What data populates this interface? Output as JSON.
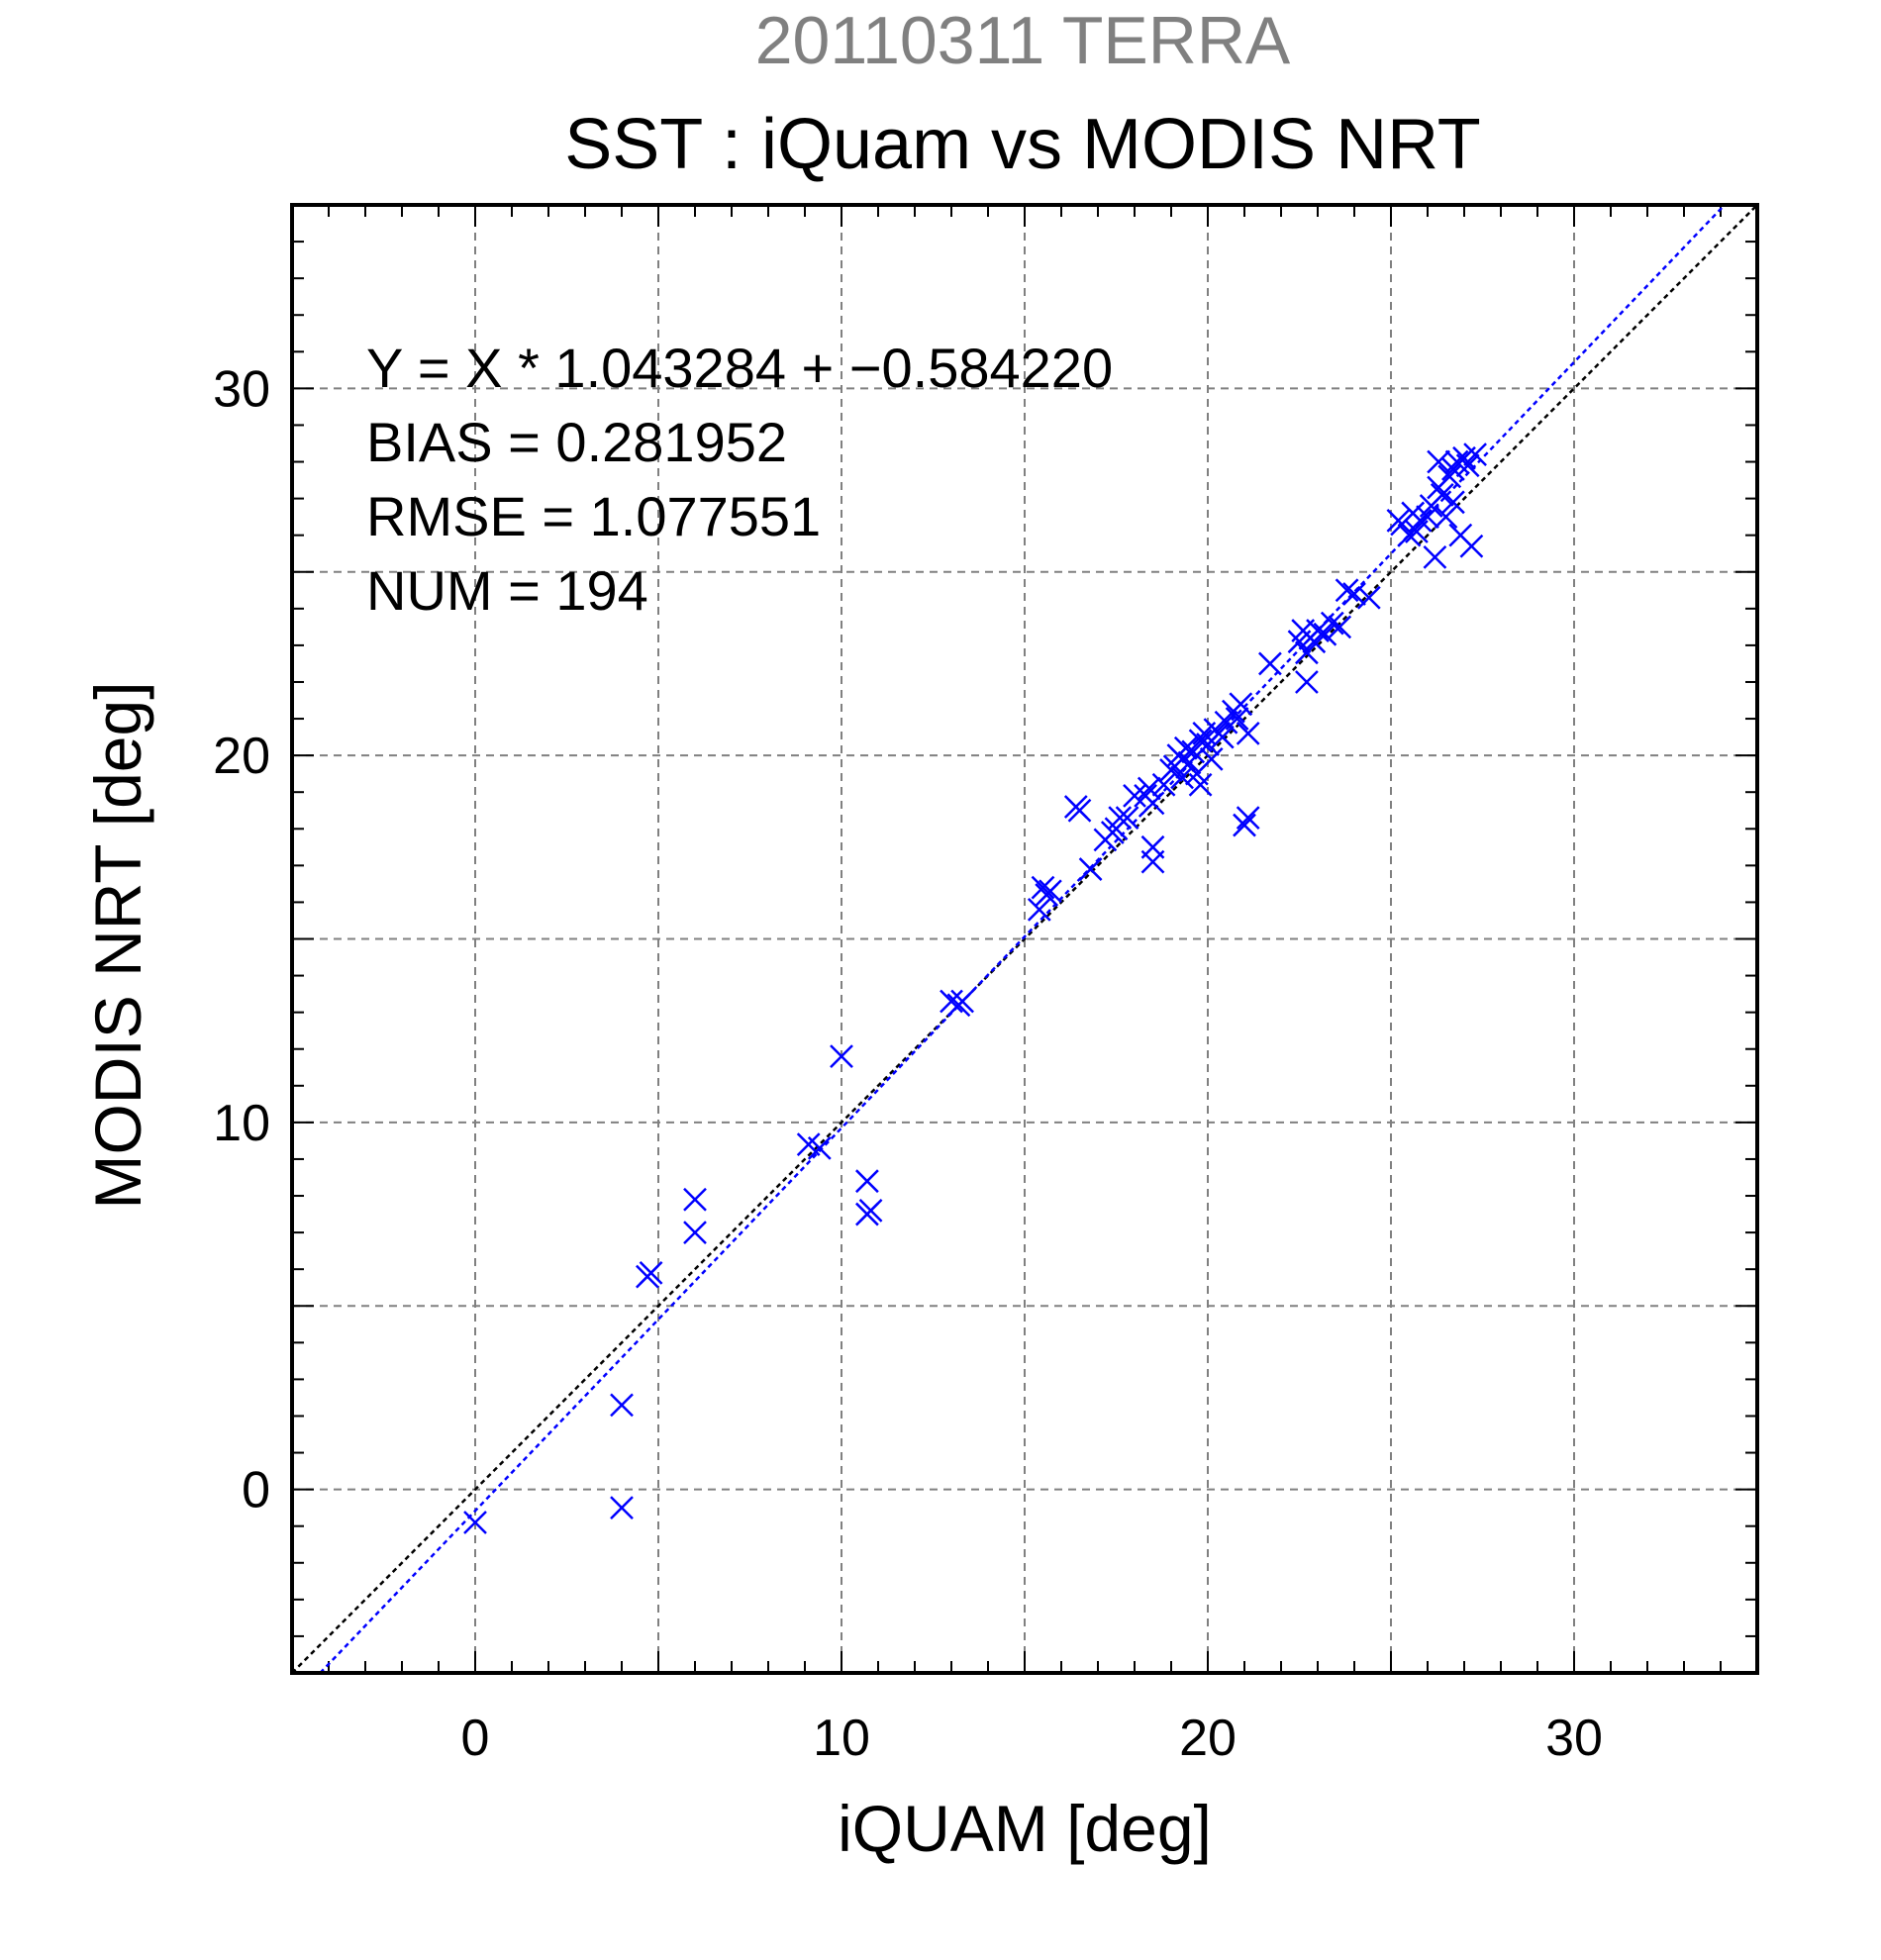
{
  "chart_data": {
    "type": "scatter",
    "title": "20110311 TERRA",
    "subtitle": "SST : iQuam vs MODIS NRT",
    "xlabel": "iQUAM [deg]",
    "ylabel": "MODIS NRT [deg]",
    "xlim": [
      -5,
      35
    ],
    "ylim": [
      -5,
      35
    ],
    "xticks": [
      "0",
      "10",
      "20",
      "30"
    ],
    "yticks": [
      "0",
      "10",
      "20",
      "30"
    ],
    "grid": true,
    "annotations": [
      "Y = X * 1.043284 + −0.584220",
      "BIAS = 0.281952",
      "RMSE = 1.077551",
      "NUM = 194"
    ],
    "lines": [
      {
        "style": "dotted",
        "color": "#000000",
        "slope": 1,
        "intercept": 0
      },
      {
        "style": "dotted",
        "color": "#0000ff",
        "slope": 1.043284,
        "intercept": -0.58422
      }
    ],
    "series": [
      {
        "color": "#0000ff",
        "marker": "x",
        "points": [
          [
            0.0,
            -0.9
          ],
          [
            4.0,
            -0.5
          ],
          [
            4.0,
            2.3
          ],
          [
            4.7,
            5.8
          ],
          [
            4.8,
            5.9
          ],
          [
            6.0,
            7.0
          ],
          [
            6.0,
            7.9
          ],
          [
            9.1,
            9.4
          ],
          [
            9.4,
            9.3
          ],
          [
            10.0,
            11.8
          ],
          [
            10.7,
            8.4
          ],
          [
            10.7,
            7.5
          ],
          [
            10.8,
            7.6
          ],
          [
            13.0,
            13.3
          ],
          [
            13.2,
            13.2
          ],
          [
            13.3,
            13.3
          ],
          [
            15.4,
            15.8
          ],
          [
            15.5,
            16.4
          ],
          [
            15.6,
            16.2
          ],
          [
            15.7,
            16.3
          ],
          [
            16.4,
            18.6
          ],
          [
            16.5,
            18.5
          ],
          [
            16.8,
            16.9
          ],
          [
            17.2,
            17.7
          ],
          [
            17.4,
            17.9
          ],
          [
            17.5,
            18.0
          ],
          [
            17.6,
            18.3
          ],
          [
            17.8,
            18.3
          ],
          [
            18.0,
            18.9
          ],
          [
            18.3,
            18.9
          ],
          [
            18.4,
            19.1
          ],
          [
            18.5,
            17.1
          ],
          [
            18.5,
            17.5
          ],
          [
            18.5,
            18.7
          ],
          [
            18.8,
            19.2
          ],
          [
            19.0,
            19.6
          ],
          [
            19.1,
            19.7
          ],
          [
            19.2,
            20.0
          ],
          [
            19.3,
            19.9
          ],
          [
            19.3,
            19.4
          ],
          [
            19.4,
            20.2
          ],
          [
            19.5,
            19.8
          ],
          [
            19.6,
            20.1
          ],
          [
            19.7,
            19.5
          ],
          [
            19.8,
            20.4
          ],
          [
            19.8,
            19.2
          ],
          [
            19.9,
            20.6
          ],
          [
            20.0,
            20.3
          ],
          [
            20.1,
            19.9
          ],
          [
            20.2,
            20.7
          ],
          [
            20.3,
            20.6
          ],
          [
            20.4,
            20.5
          ],
          [
            20.5,
            20.9
          ],
          [
            20.7,
            21.2
          ],
          [
            20.8,
            21.0
          ],
          [
            20.9,
            21.4
          ],
          [
            21.0,
            18.1
          ],
          [
            21.1,
            18.3
          ],
          [
            21.1,
            20.6
          ],
          [
            21.7,
            22.5
          ],
          [
            22.5,
            23.1
          ],
          [
            22.6,
            23.4
          ],
          [
            22.7,
            22.0
          ],
          [
            22.7,
            22.8
          ],
          [
            22.8,
            23.2
          ],
          [
            22.9,
            23.1
          ],
          [
            23.0,
            23.4
          ],
          [
            23.2,
            23.3
          ],
          [
            23.4,
            23.6
          ],
          [
            23.6,
            23.5
          ],
          [
            23.8,
            24.5
          ],
          [
            24.0,
            24.4
          ],
          [
            24.4,
            24.3
          ],
          [
            25.2,
            26.4
          ],
          [
            25.3,
            26.3
          ],
          [
            25.5,
            26.0
          ],
          [
            25.6,
            26.6
          ],
          [
            25.7,
            26.1
          ],
          [
            25.8,
            26.4
          ],
          [
            26.0,
            26.5
          ],
          [
            26.1,
            26.8
          ],
          [
            26.2,
            25.4
          ],
          [
            26.3,
            27.3
          ],
          [
            26.3,
            28.0
          ],
          [
            26.4,
            27.1
          ],
          [
            26.5,
            26.5
          ],
          [
            26.6,
            27.6
          ],
          [
            26.7,
            26.9
          ],
          [
            26.7,
            27.8
          ],
          [
            26.8,
            28.0
          ],
          [
            26.9,
            26.0
          ],
          [
            27.0,
            28.1
          ],
          [
            27.1,
            27.9
          ],
          [
            27.2,
            25.7
          ],
          [
            27.3,
            28.2
          ]
        ]
      }
    ]
  }
}
